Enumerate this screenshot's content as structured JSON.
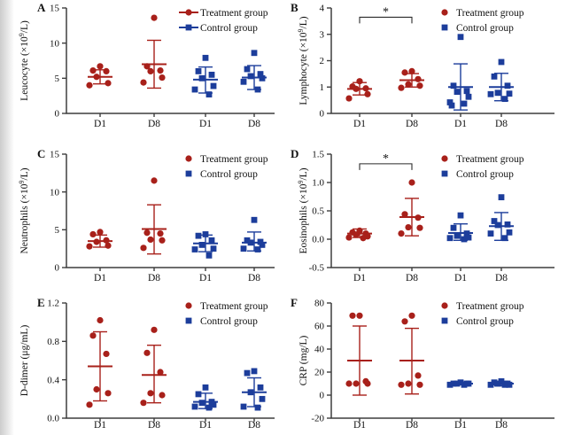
{
  "figure": {
    "colors": {
      "treatment": "#a8201a",
      "control": "#1c3d9b",
      "axis": "#3d3d3d",
      "significance": "#2a2a2a",
      "background": "#ffffff"
    },
    "legend": {
      "treatment_label": "Treatment group",
      "control_label": "Control group",
      "position": "top-right"
    }
  },
  "chart_data": [
    {
      "type": "scatter",
      "panel": "A",
      "title": "",
      "xlabel": "",
      "ylabel": "Leucocyte (×10⁹/L)",
      "ylim": [
        0,
        15
      ],
      "yticks": [
        0,
        5,
        10,
        15
      ],
      "ytick_labels": [
        "0",
        "5",
        "10",
        "15"
      ],
      "categories": [
        "D1",
        "D8",
        "D1",
        "D8"
      ],
      "legend": [
        "Treatment group",
        "Control group"
      ],
      "legend_marker_line": true,
      "grid": false,
      "series": [
        {
          "name": "Treatment D1",
          "group": "treatment",
          "points": [
            6.7,
            6.1,
            6.0,
            5.2,
            4.3,
            4.0
          ],
          "mean": 5.2,
          "err": [
            4.2,
            6.2
          ]
        },
        {
          "name": "Treatment D8",
          "group": "treatment",
          "points": [
            13.6,
            6.7,
            6.1,
            6.0,
            5.1,
            4.4
          ],
          "mean": 7.0,
          "err": [
            3.6,
            10.4
          ]
        },
        {
          "name": "Control D1",
          "group": "control",
          "points": [
            7.9,
            6.0,
            5.5,
            5.0,
            3.9,
            3.4,
            2.7
          ],
          "mean": 4.8,
          "err": [
            2.9,
            6.6
          ]
        },
        {
          "name": "Control D8",
          "group": "control",
          "points": [
            8.6,
            6.3,
            5.6,
            5.3,
            5.0,
            4.5,
            3.4
          ],
          "mean": 5.1,
          "err": [
            3.4,
            6.8
          ]
        }
      ]
    },
    {
      "type": "scatter",
      "panel": "B",
      "title": "",
      "xlabel": "",
      "ylabel": "Lymphocyte (×10⁹/L)",
      "ylim": [
        0,
        4
      ],
      "yticks": [
        0,
        1,
        2,
        3,
        4
      ],
      "ytick_labels": [
        "0",
        "1",
        "2",
        "3",
        "4"
      ],
      "categories": [
        "D1",
        "D8",
        "D1",
        "D8"
      ],
      "legend": [
        "Treatment group",
        "Control group"
      ],
      "legend_marker_line": false,
      "grid": false,
      "significance": {
        "between": [
          0,
          1
        ],
        "label": "*",
        "bracket_y": 3.65
      },
      "series": [
        {
          "name": "Treatment D1",
          "group": "treatment",
          "points": [
            1.22,
            1.02,
            0.95,
            0.93,
            0.73,
            0.57
          ],
          "mean": 0.93,
          "err": [
            0.7,
            1.17
          ]
        },
        {
          "name": "Treatment D8",
          "group": "treatment",
          "points": [
            1.6,
            1.55,
            1.3,
            1.1,
            1.05,
            0.97
          ],
          "mean": 1.26,
          "err": [
            1.0,
            1.51
          ]
        },
        {
          "name": "Control D1",
          "group": "control",
          "points": [
            2.9,
            1.05,
            0.85,
            0.82,
            0.63,
            0.42,
            0.37,
            0.3
          ],
          "mean": 1.0,
          "err": [
            0.13,
            1.88
          ]
        },
        {
          "name": "Control D8",
          "group": "control",
          "points": [
            1.95,
            1.4,
            1.05,
            0.78,
            0.75,
            0.73,
            0.55
          ],
          "mean": 1.0,
          "err": [
            0.48,
            1.52
          ]
        }
      ]
    },
    {
      "type": "scatter",
      "panel": "C",
      "title": "",
      "xlabel": "",
      "ylabel": "Neutrophils (×10⁹/L)",
      "ylim": [
        0,
        15
      ],
      "yticks": [
        0,
        5,
        10,
        15
      ],
      "ytick_labels": [
        "0",
        "5",
        "10",
        "15"
      ],
      "categories": [
        "D1",
        "D8",
        "D1",
        "D8"
      ],
      "legend": [
        "Treatment group",
        "Control group"
      ],
      "legend_marker_line": false,
      "grid": false,
      "series": [
        {
          "name": "Treatment D1",
          "group": "treatment",
          "points": [
            4.7,
            4.4,
            3.6,
            3.4,
            2.9,
            2.8
          ],
          "mean": 3.5,
          "err": [
            2.7,
            4.3
          ]
        },
        {
          "name": "Treatment D8",
          "group": "treatment",
          "points": [
            11.5,
            4.6,
            4.5,
            3.7,
            3.6,
            2.6
          ],
          "mean": 5.1,
          "err": [
            1.8,
            8.3
          ]
        },
        {
          "name": "Control D1",
          "group": "control",
          "points": [
            4.4,
            4.2,
            3.6,
            3.0,
            2.5,
            2.4,
            1.6
          ],
          "mean": 3.2,
          "err": [
            2.1,
            4.3
          ]
        },
        {
          "name": "Control D8",
          "group": "control",
          "points": [
            6.3,
            3.6,
            3.4,
            3.3,
            3.0,
            2.5,
            2.4
          ],
          "mean": 3.3,
          "err": [
            2.2,
            4.7
          ]
        }
      ]
    },
    {
      "type": "scatter",
      "panel": "D",
      "title": "",
      "xlabel": "",
      "ylabel": "Eosinophils (×10⁹/L)",
      "ylim": [
        -0.5,
        1.5
      ],
      "yticks": [
        -0.5,
        0.0,
        0.5,
        1.0,
        1.5
      ],
      "ytick_labels": [
        "-0.5",
        "0.0",
        "0.5",
        "1.0",
        "1.5"
      ],
      "categories": [
        "D1",
        "D8",
        "D1",
        "D8"
      ],
      "legend": [
        "Treatment group",
        "Control group"
      ],
      "legend_marker_line": false,
      "grid": false,
      "significance": {
        "between": [
          0,
          1
        ],
        "label": "*",
        "bracket_y": 1.33
      },
      "series": [
        {
          "name": "Treatment D1",
          "group": "treatment",
          "points": [
            0.15,
            0.12,
            0.1,
            0.08,
            0.05,
            0.03,
            0.02
          ],
          "mean": 0.1,
          "err": [
            0.03,
            0.18
          ]
        },
        {
          "name": "Treatment D8",
          "group": "treatment",
          "points": [
            1.0,
            0.44,
            0.38,
            0.21,
            0.2,
            0.1
          ],
          "mean": 0.39,
          "err": [
            0.06,
            0.72
          ]
        },
        {
          "name": "Control D1",
          "group": "control",
          "points": [
            0.42,
            0.2,
            0.1,
            0.06,
            0.03,
            0.02,
            0.0
          ],
          "mean": 0.11,
          "err": [
            -0.02,
            0.27
          ]
        },
        {
          "name": "Control D8",
          "group": "control",
          "points": [
            0.74,
            0.32,
            0.26,
            0.25,
            0.12,
            0.1,
            0.02
          ],
          "mean": 0.23,
          "err": [
            -0.02,
            0.47
          ]
        }
      ]
    },
    {
      "type": "scatter",
      "panel": "E",
      "title": "",
      "xlabel": "",
      "ylabel": "D-dimer (μg/mL)",
      "ylim": [
        0,
        1.2
      ],
      "yticks": [
        0,
        0.4,
        0.8,
        1.2
      ],
      "ytick_labels": [
        "0.0",
        "0.4",
        "0.8",
        "1.2"
      ],
      "categories": [
        "D1",
        "D8",
        "D1",
        "D8"
      ],
      "legend": [
        "Treatment group",
        "Control group"
      ],
      "legend_marker_line": false,
      "grid": false,
      "series": [
        {
          "name": "Treatment D1",
          "group": "treatment",
          "points": [
            1.02,
            0.86,
            0.67,
            0.3,
            0.26,
            0.14
          ],
          "mean": 0.54,
          "err": [
            0.18,
            0.9
          ]
        },
        {
          "name": "Treatment D8",
          "group": "treatment",
          "points": [
            0.92,
            0.68,
            0.48,
            0.26,
            0.24,
            0.16
          ],
          "mean": 0.45,
          "err": [
            0.16,
            0.76
          ]
        },
        {
          "name": "Control D1",
          "group": "control",
          "points": [
            0.32,
            0.25,
            0.17,
            0.16,
            0.14,
            0.12,
            0.11
          ],
          "mean": 0.17,
          "err": [
            0.1,
            0.26
          ]
        },
        {
          "name": "Control D8",
          "group": "control",
          "points": [
            0.49,
            0.47,
            0.32,
            0.27,
            0.2,
            0.12,
            0.11
          ],
          "mean": 0.27,
          "err": [
            0.12,
            0.42
          ]
        }
      ]
    },
    {
      "type": "scatter",
      "panel": "F",
      "title": "",
      "xlabel": "",
      "ylabel": "CRP (mg/L)",
      "ylim": [
        -20,
        80
      ],
      "yticks": [
        -20,
        0,
        20,
        40,
        60,
        80
      ],
      "ytick_labels": [
        "-20",
        "0",
        "20",
        "40",
        "60",
        "80"
      ],
      "categories": [
        "D1",
        "D8",
        "D1",
        "D8"
      ],
      "legend": [
        "Treatment group",
        "Control group"
      ],
      "legend_marker_line": false,
      "grid": false,
      "series": [
        {
          "name": "Treatment D1",
          "group": "treatment",
          "points": [
            69,
            69,
            12,
            10,
            10,
            10
          ],
          "mean": 30,
          "err": [
            0,
            60
          ]
        },
        {
          "name": "Treatment D8",
          "group": "treatment",
          "points": [
            69,
            64,
            17,
            10,
            9,
            9
          ],
          "mean": 30,
          "err": [
            1,
            58
          ]
        },
        {
          "name": "Control D1",
          "group": "control",
          "points": [
            11,
            10,
            10,
            10,
            10,
            9,
            9
          ],
          "mean": 10,
          "err": [
            9,
            11
          ]
        },
        {
          "name": "Control D8",
          "group": "control",
          "points": [
            12,
            11,
            10,
            10,
            9,
            9,
            9
          ],
          "mean": 10,
          "err": [
            8,
            12
          ]
        }
      ]
    }
  ]
}
